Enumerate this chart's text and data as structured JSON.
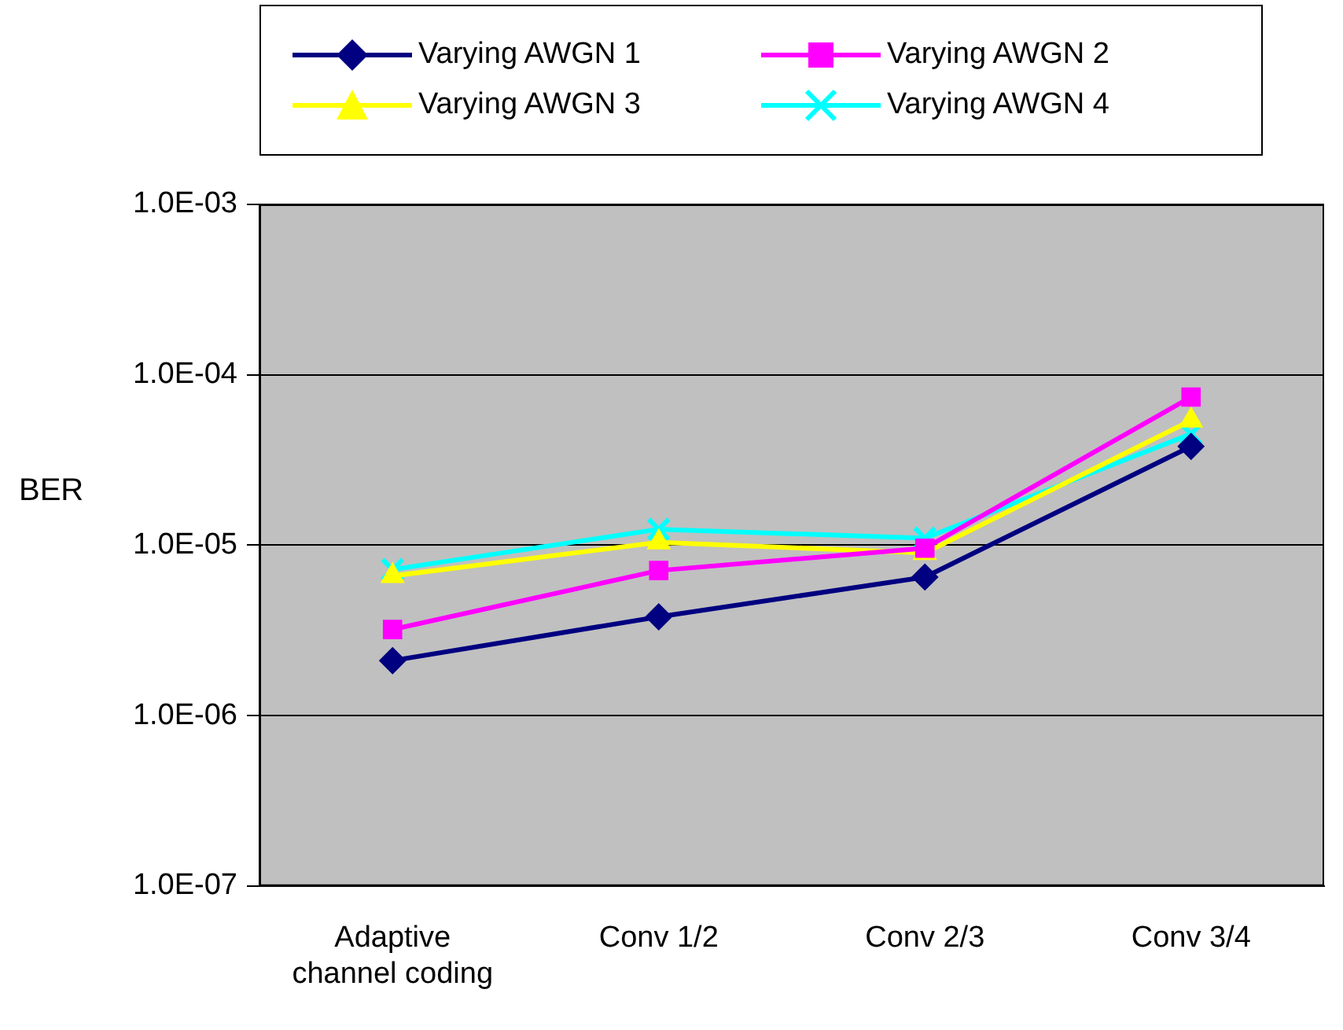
{
  "chart_data": {
    "type": "line",
    "ylabel": "BER",
    "categories": [
      "Adaptive channel coding",
      "Conv 1/2",
      "Conv 2/3",
      "Conv 3/4"
    ],
    "series": [
      {
        "name": "Varying AWGN 1",
        "color": "#000080",
        "marker": "diamond",
        "values": [
          2.1e-06,
          3.8e-06,
          6.5e-06,
          3.8e-05
        ]
      },
      {
        "name": "Varying AWGN 2",
        "color": "#ff00ff",
        "marker": "square",
        "values": [
          3.2e-06,
          7.1e-06,
          9.6e-06,
          7.4e-05
        ]
      },
      {
        "name": "Varying AWGN 3",
        "color": "#ffff00",
        "marker": "triangle",
        "values": [
          6.6e-06,
          1.04e-05,
          9e-06,
          5.4e-05
        ]
      },
      {
        "name": "Varying AWGN 4",
        "color": "#00ffff",
        "marker": "cross",
        "values": [
          7.2e-06,
          1.24e-05,
          1.1e-05,
          4.5e-05
        ]
      }
    ],
    "log": "y",
    "ylim": [
      1e-07,
      0.001
    ],
    "yticks": [
      {
        "value": 1e-07,
        "label": "1.0E-07"
      },
      {
        "value": 1e-06,
        "label": "1.0E-06"
      },
      {
        "value": 1e-05,
        "label": "1.0E-05"
      },
      {
        "value": 0.0001,
        "label": "1.0E-04"
      },
      {
        "value": 0.001,
        "label": "1.0E-03"
      }
    ],
    "grid": "y",
    "legend": "top",
    "line_style": "solid"
  }
}
